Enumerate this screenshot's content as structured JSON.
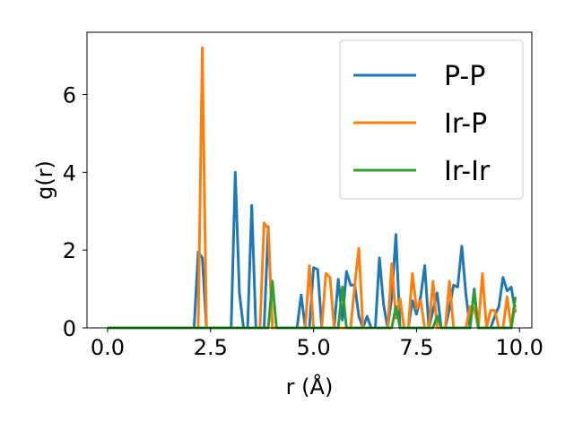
{
  "chart_data": {
    "type": "line",
    "title": "",
    "xlabel": "r (Å)",
    "ylabel": "g(r)",
    "xlim": [
      -0.5,
      10.3
    ],
    "ylim": [
      0,
      7.6
    ],
    "xticks": [
      0.0,
      2.5,
      5.0,
      7.5,
      10.0
    ],
    "xtick_labels": [
      "0.0",
      "2.5",
      "5.0",
      "7.5",
      "10.0"
    ],
    "yticks": [
      0,
      2,
      4,
      6
    ],
    "ytick_labels": [
      "0",
      "2",
      "4",
      "6"
    ],
    "grid": false,
    "legend_position": "upper right",
    "series": [
      {
        "name": "P-P",
        "color": "#1f77b4",
        "points": [
          [
            0,
            0
          ],
          [
            2.1,
            0
          ],
          [
            2.2,
            1.95
          ],
          [
            2.3,
            1.8
          ],
          [
            2.4,
            0
          ],
          [
            3.0,
            0
          ],
          [
            3.1,
            4.0
          ],
          [
            3.2,
            0.9
          ],
          [
            3.3,
            0
          ],
          [
            3.4,
            0
          ],
          [
            3.5,
            3.15
          ],
          [
            3.6,
            0
          ],
          [
            3.8,
            0
          ],
          [
            3.9,
            2.6
          ],
          [
            4.0,
            0
          ],
          [
            4.6,
            0
          ],
          [
            4.7,
            0.85
          ],
          [
            4.8,
            0
          ],
          [
            4.9,
            0
          ],
          [
            5.0,
            1.55
          ],
          [
            5.1,
            1.5
          ],
          [
            5.2,
            0
          ],
          [
            5.5,
            0
          ],
          [
            5.6,
            1.25
          ],
          [
            5.7,
            0.2
          ],
          [
            5.8,
            1.45
          ],
          [
            5.9,
            1.1
          ],
          [
            6.0,
            1.1
          ],
          [
            6.1,
            0.3
          ],
          [
            6.2,
            0
          ],
          [
            6.3,
            0.3
          ],
          [
            6.4,
            0
          ],
          [
            6.5,
            0
          ],
          [
            6.6,
            1.8
          ],
          [
            6.7,
            0.6
          ],
          [
            6.8,
            0
          ],
          [
            6.9,
            0.8
          ],
          [
            7.0,
            2.4
          ],
          [
            7.1,
            0
          ],
          [
            7.2,
            0
          ],
          [
            7.3,
            0
          ],
          [
            7.4,
            0.7
          ],
          [
            7.5,
            0.35
          ],
          [
            7.6,
            0.8
          ],
          [
            7.7,
            1.6
          ],
          [
            7.8,
            0
          ],
          [
            8.0,
            0.9
          ],
          [
            8.1,
            0
          ],
          [
            8.2,
            0
          ],
          [
            8.3,
            0.5
          ],
          [
            8.4,
            1.1
          ],
          [
            8.5,
            1.05
          ],
          [
            8.6,
            2.1
          ],
          [
            8.7,
            0.85
          ],
          [
            8.8,
            0
          ],
          [
            8.9,
            1.0
          ],
          [
            9.0,
            0
          ],
          [
            9.1,
            0
          ],
          [
            9.2,
            0
          ],
          [
            9.3,
            0
          ],
          [
            9.4,
            0.3
          ],
          [
            9.5,
            0.55
          ],
          [
            9.6,
            1.3
          ],
          [
            9.7,
            0.95
          ],
          [
            9.8,
            1.05
          ],
          [
            9.9,
            0.4
          ]
        ]
      },
      {
        "name": "Ir-P",
        "color": "#ff7f0e",
        "points": [
          [
            0,
            0
          ],
          [
            2.1,
            0
          ],
          [
            2.2,
            0
          ],
          [
            2.3,
            7.2
          ],
          [
            2.4,
            0
          ],
          [
            3.7,
            0
          ],
          [
            3.8,
            2.7
          ],
          [
            3.9,
            2.55
          ],
          [
            4.0,
            0
          ],
          [
            4.8,
            0
          ],
          [
            4.9,
            1.6
          ],
          [
            5.0,
            0
          ],
          [
            5.2,
            0
          ],
          [
            5.3,
            1.4
          ],
          [
            5.4,
            1.3
          ],
          [
            5.5,
            0
          ],
          [
            5.9,
            0
          ],
          [
            6.0,
            1.1
          ],
          [
            6.1,
            2.05
          ],
          [
            6.2,
            0
          ],
          [
            6.3,
            0
          ],
          [
            6.4,
            0
          ],
          [
            6.5,
            0
          ],
          [
            6.6,
            0
          ],
          [
            6.7,
            0
          ],
          [
            6.8,
            0
          ],
          [
            6.9,
            1.65
          ],
          [
            7.0,
            0.25
          ],
          [
            7.1,
            0.75
          ],
          [
            7.2,
            0
          ],
          [
            7.3,
            0
          ],
          [
            7.4,
            1.4
          ],
          [
            7.5,
            0.5
          ],
          [
            7.6,
            0.7
          ],
          [
            7.7,
            0
          ],
          [
            7.8,
            0
          ],
          [
            7.9,
            1.2
          ],
          [
            8.0,
            0
          ],
          [
            8.1,
            0
          ],
          [
            8.2,
            0
          ],
          [
            8.3,
            1.2
          ],
          [
            8.4,
            0
          ],
          [
            8.5,
            0
          ],
          [
            8.6,
            0
          ],
          [
            8.7,
            0
          ],
          [
            8.8,
            0.55
          ],
          [
            8.9,
            0.5
          ],
          [
            9.0,
            0
          ],
          [
            9.1,
            1.4
          ],
          [
            9.2,
            0
          ],
          [
            9.3,
            0.45
          ],
          [
            9.4,
            0.45
          ],
          [
            9.5,
            0
          ],
          [
            9.6,
            0
          ],
          [
            9.7,
            0.8
          ],
          [
            9.8,
            0
          ],
          [
            9.9,
            0.6
          ]
        ]
      },
      {
        "name": "Ir-Ir",
        "color": "#2ca02c",
        "points": [
          [
            0,
            0
          ],
          [
            3.9,
            0
          ],
          [
            4.0,
            1.2
          ],
          [
            4.1,
            0
          ],
          [
            5.6,
            0
          ],
          [
            5.7,
            1.05
          ],
          [
            5.8,
            0
          ],
          [
            6.8,
            0
          ],
          [
            6.9,
            0
          ],
          [
            7.0,
            0.55
          ],
          [
            7.1,
            0
          ],
          [
            7.9,
            0
          ],
          [
            8.0,
            0.3
          ],
          [
            8.1,
            0
          ],
          [
            8.8,
            0
          ],
          [
            8.9,
            0.95
          ],
          [
            9.0,
            0
          ],
          [
            9.8,
            0
          ],
          [
            9.9,
            0.8
          ]
        ]
      }
    ]
  }
}
